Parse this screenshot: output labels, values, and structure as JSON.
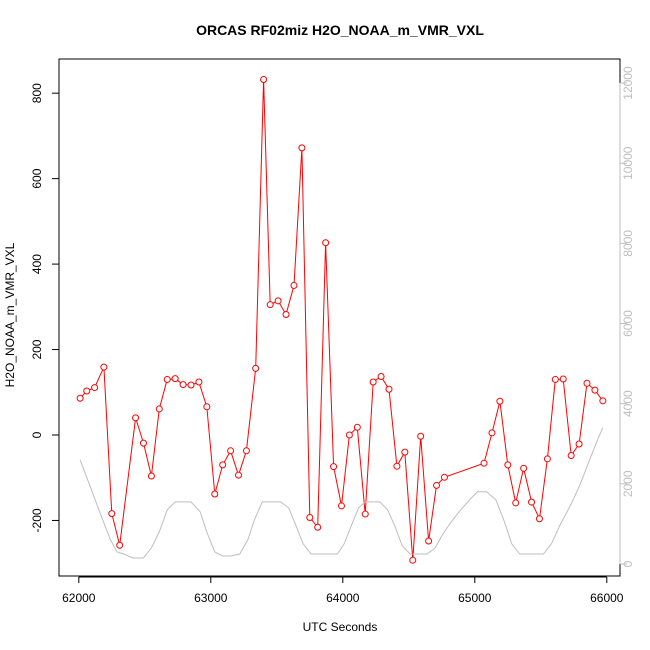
{
  "chart_data": {
    "type": "line",
    "title": "ORCAS RF02miz H2O_NOAA_m_VMR_VXL",
    "xlabel": "UTC Seconds",
    "ylabel": "H2O_NOAA_m_VMR_VXL",
    "xlim": [
      61850,
      66100
    ],
    "ylim": [
      -330,
      880
    ],
    "y2lim": [
      -300,
      12600
    ],
    "xticks": [
      "62000",
      "63000",
      "64000",
      "65000",
      "66000"
    ],
    "yticks": [
      "-200",
      "0",
      "200",
      "400",
      "600",
      "800"
    ],
    "y2ticks": [
      "0",
      "2000",
      "4000",
      "6000",
      "8000",
      "10000",
      "12000"
    ],
    "colors": {
      "primary": "#ff0000",
      "secondary": "#bebebe"
    },
    "series": [
      {
        "axis": "left",
        "style": "line+points",
        "x": [
          62010,
          62060,
          62120,
          62190,
          62250,
          62310,
          62430,
          62490,
          62550,
          62610,
          62670,
          62730,
          62790,
          62850,
          62910,
          62970,
          63030,
          63090,
          63150,
          63210,
          63270,
          63340,
          63400,
          63450,
          63510,
          63570,
          63630,
          63690,
          63750,
          63810,
          63870,
          63930,
          63990,
          64050,
          64110,
          64170,
          64230,
          64290,
          64350,
          64410,
          64470,
          64530,
          64590,
          64650,
          64710,
          64770,
          65070,
          65130,
          65190,
          65250,
          65310,
          65370,
          65430,
          65490,
          65550,
          65610,
          65670,
          65730,
          65790,
          65850,
          65910,
          65970
        ],
        "y": [
          86,
          103,
          111,
          159,
          -184,
          -258,
          40,
          -19,
          -96,
          61,
          130,
          132,
          118,
          117,
          124,
          66,
          -138,
          -70,
          -37,
          -94,
          -37,
          156,
          832,
          305,
          314,
          282,
          350,
          672,
          -193,
          -216,
          450,
          -74,
          -166,
          0,
          18,
          -185,
          124,
          137,
          107,
          -73,
          -40,
          -293,
          -3,
          -248,
          -118,
          -99,
          -66,
          5,
          79,
          -70,
          -159,
          -78,
          -157,
          -196,
          -56,
          130,
          131,
          -48,
          -21,
          121,
          105,
          80
        ]
      },
      {
        "axis": "right",
        "style": "line",
        "x": [
          62010,
          62090,
          62170,
          62240,
          62290,
          62340,
          62410,
          62490,
          62550,
          62610,
          62670,
          62730,
          62780,
          62850,
          62920,
          62970,
          63030,
          63090,
          63150,
          63220,
          63280,
          63330,
          63390,
          63440,
          63480,
          63530,
          63590,
          63640,
          63700,
          63760,
          63830,
          63890,
          63960,
          64010,
          64070,
          64120,
          64170,
          64220,
          64280,
          64340,
          64400,
          64450,
          64510,
          64580,
          64640,
          64700,
          64750,
          64810,
          64880,
          64960,
          65020,
          65090,
          65160,
          65220,
          65280,
          65340,
          65400,
          65460,
          65520,
          65580,
          65650,
          65730,
          65800,
          65870,
          65930,
          65970
        ],
        "y": [
          2600,
          1900,
          1200,
          600,
          300,
          250,
          150,
          150,
          400,
          800,
          1350,
          1550,
          1550,
          1550,
          1300,
          800,
          300,
          200,
          200,
          250,
          600,
          1100,
          1550,
          1550,
          1550,
          1550,
          1400,
          1000,
          500,
          250,
          250,
          250,
          250,
          500,
          1000,
          1400,
          1550,
          1550,
          1550,
          1350,
          900,
          450,
          250,
          250,
          250,
          400,
          700,
          1000,
          1300,
          1600,
          1800,
          1800,
          1600,
          1100,
          500,
          250,
          250,
          250,
          250,
          500,
          1000,
          1500,
          2000,
          2600,
          3100,
          3400
        ]
      }
    ]
  }
}
